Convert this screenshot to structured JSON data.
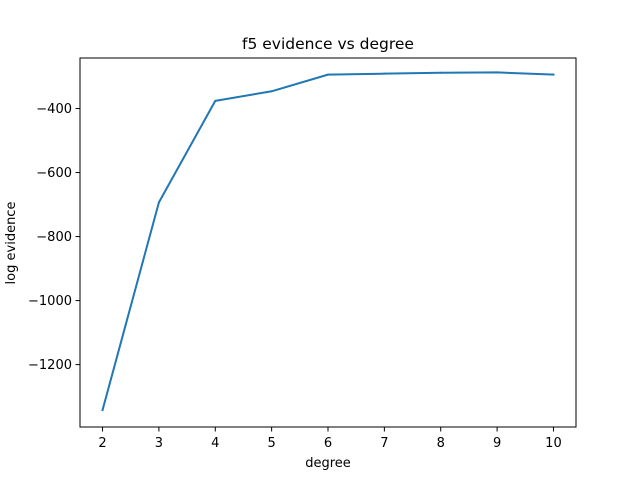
{
  "chart_data": {
    "type": "line",
    "title": "f5 evidence vs degree",
    "xlabel": "degree",
    "ylabel": "log evidence",
    "x": [
      2,
      3,
      4,
      5,
      6,
      7,
      8,
      9,
      10
    ],
    "series": [
      {
        "values": [
          -1342,
          -693,
          -376,
          -346,
          -294,
          -291,
          -288,
          -287,
          -294
        ],
        "color": "#1f77b4"
      }
    ],
    "xlim": [
      1.6,
      10.4
    ],
    "ylim": [
      -1395,
      -242
    ],
    "xticks": [
      2,
      3,
      4,
      5,
      6,
      7,
      8,
      9,
      10
    ],
    "xtick_labels": [
      "2",
      "3",
      "4",
      "5",
      "6",
      "7",
      "8",
      "9",
      "10"
    ],
    "yticks": [
      -1200,
      -1000,
      -800,
      -600,
      -400
    ],
    "ytick_labels": [
      "−1200",
      "−1000",
      "−800",
      "−600",
      "−400"
    ],
    "grid": false,
    "legend": "none"
  }
}
